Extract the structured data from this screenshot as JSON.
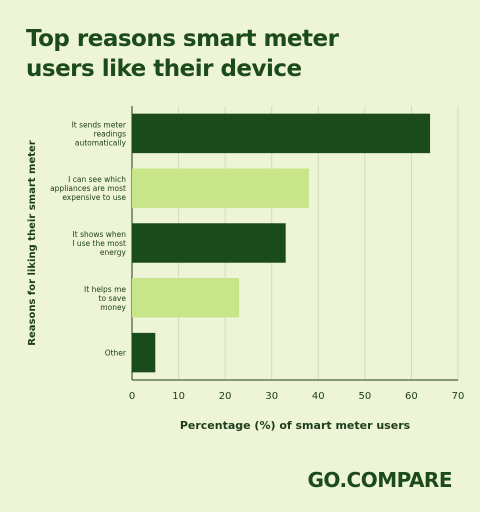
{
  "title_lines": [
    "Top reasons smart meter",
    "users like their device"
  ],
  "brand": "GO.COMPARE",
  "colors": {
    "background": "#eef4d6",
    "dark": "#1b4a1b",
    "light": "#c9e58a",
    "text": "#1b3d1b"
  },
  "chart_data": {
    "type": "bar",
    "orientation": "horizontal",
    "title": "Top reasons smart meter users like their device",
    "xlabel": "Percentage (%) of smart meter users",
    "ylabel": "Reasons for liking their smart meter",
    "xlim": [
      0,
      70
    ],
    "xticks": [
      0,
      10,
      20,
      30,
      40,
      50,
      60,
      70
    ],
    "grid": "vertical",
    "categories": [
      [
        "It sends meter",
        "readings",
        "automatically"
      ],
      [
        "I can see which",
        "appliances are most",
        "expensive to use"
      ],
      [
        "It shows when",
        "I use the most",
        "energy"
      ],
      [
        "It helps me",
        "to save",
        "money"
      ],
      [
        "Other"
      ]
    ],
    "values": [
      64,
      38,
      33,
      23,
      5
    ],
    "bar_colors": [
      "#1b4a1b",
      "#c9e58a",
      "#1b4a1b",
      "#c9e58a",
      "#1b4a1b"
    ]
  }
}
